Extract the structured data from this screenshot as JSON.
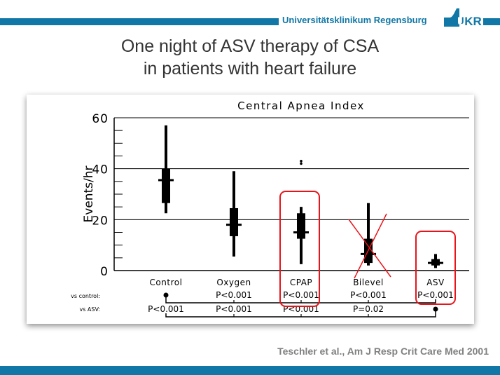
{
  "header": {
    "institution": "Universitätsklinikum Regensburg",
    "logo_text": "UKR",
    "brand_color": "#1177a6"
  },
  "slide": {
    "title_line1": "One night of ASV therapy of CSA",
    "title_line2": "in patients with heart failure",
    "citation": "Teschler et al., Am J Resp Crit Care  Med 2001"
  },
  "chart_data": {
    "type": "boxplot",
    "title": "Central Apnea Index",
    "xlabel": "",
    "ylabel": "Events/hr",
    "ylim": [
      0,
      60
    ],
    "yticks": [
      0,
      20,
      40,
      60
    ],
    "grid": true,
    "categories": [
      "Control",
      "Oxygen",
      "CPAP",
      "Bilevel",
      "ASV"
    ],
    "boxes": [
      {
        "name": "Control",
        "min": 22.5,
        "q1": 26.5,
        "median": 35.5,
        "q3": 40,
        "max": 57,
        "outliers": []
      },
      {
        "name": "Oxygen",
        "min": 5.5,
        "q1": 13.5,
        "median": 18,
        "q3": 24.5,
        "max": 39,
        "outliers": []
      },
      {
        "name": "CPAP",
        "min": 2.5,
        "q1": 12.5,
        "median": 15,
        "q3": 22.5,
        "max": 25,
        "outliers": [
          43,
          42
        ]
      },
      {
        "name": "Bilevel",
        "min": 2,
        "q1": 3,
        "median": 6.5,
        "q3": 12.5,
        "max": 26.5,
        "outliers": []
      },
      {
        "name": "ASV",
        "min": 1,
        "q1": 2,
        "median": 3,
        "q3": 4.5,
        "max": 6.5,
        "outliers": []
      }
    ],
    "comparisons": {
      "vs_control_label": "vs control:",
      "vs_control": [
        "",
        "P<0.001",
        "P<0.001",
        "P<0.001",
        "P<0.001"
      ],
      "vs_asv_label": "vs ASV:",
      "vs_asv": [
        "P<0.001",
        "P<0.001",
        "P<0.001",
        "P=0.02",
        ""
      ]
    },
    "annotations": [
      {
        "type": "red-rounded-box",
        "target": "CPAP"
      },
      {
        "type": "red-cross",
        "target": "Bilevel"
      },
      {
        "type": "red-rounded-box",
        "target": "ASV"
      }
    ]
  }
}
